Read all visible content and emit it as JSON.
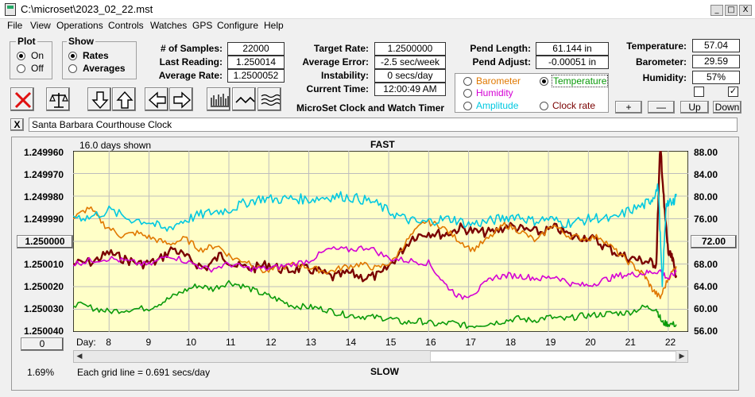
{
  "window": {
    "title": "C:\\microset\\2023_02_22.mst",
    "min": "_",
    "max": "□",
    "close": "X"
  },
  "menu": [
    "File",
    "View",
    "Operations",
    "Controls",
    "Watches",
    "GPS",
    "Configure",
    "Help"
  ],
  "plot_group": {
    "title": "Plot",
    "options": [
      "On",
      "Off"
    ],
    "selected": "On"
  },
  "show_group": {
    "title": "Show",
    "options": [
      "Rates",
      "Averages"
    ],
    "selected": "Rates"
  },
  "stats": {
    "samples_label": "# of Samples:",
    "samples": "22000",
    "last_label": "Last Reading:",
    "last": "1.250014",
    "avg_rate_label": "Average Rate:",
    "avg_rate": "1.2500052",
    "target_label": "Target Rate:",
    "target": "1.2500000",
    "avg_err_label": "Average Error:",
    "avg_err": "-2.5 sec/week",
    "instab_label": "Instability:",
    "instab": "0 secs/day",
    "time_label": "Current Time:",
    "time": "12:00:49 AM",
    "pend_len_label": "Pend Length:",
    "pend_len": "61.144 in",
    "pend_adj_label": "Pend Adjust:",
    "pend_adj": "-0.00051 in",
    "temp_label": "Temperature:",
    "temp": "57.04",
    "baro_label": "Barometer:",
    "baro": "29.59",
    "hum_label": "Humidity:",
    "hum": "57%"
  },
  "app_label": "MicroSet Clock and Watch Timer",
  "sensor_select": {
    "options": [
      {
        "label": "Barometer",
        "color": "#e07800"
      },
      {
        "label": "Temperature",
        "color": "#0a9a0a"
      },
      {
        "label": "Humidity",
        "color": "#d400d4"
      },
      {
        "label": "Amplitude",
        "color": "#00c8e0"
      },
      {
        "label": "Clock rate",
        "color": "#7a0000"
      }
    ],
    "selected": "Temperature"
  },
  "scale_buttons": [
    "+",
    "—",
    "Up",
    "Down"
  ],
  "description": "Santa Barbara Courthouse Clock",
  "close_x": "X",
  "icons": [
    "reset-x-icon",
    "balance-scale-icon",
    "arrow-down-icon",
    "arrow-up-icon",
    "arrow-left-icon",
    "arrow-right-icon",
    "bars-icon",
    "wave-icon",
    "multi-wave-icon"
  ],
  "chart_data": {
    "type": "line",
    "top_label": "FAST",
    "bottom_label": "SLOW",
    "days_shown": "16.0 days shown",
    "grid_note": "Each grid line = 0.691 secs/day",
    "percent": "1.69%",
    "x_prefix": "Day:",
    "x_ticks": [
      "8",
      "9",
      "10",
      "11",
      "12",
      "13",
      "14",
      "15",
      "16",
      "17",
      "18",
      "19",
      "20",
      "21",
      "22"
    ],
    "xlim": [
      7.1,
      22.5
    ],
    "y_left_ticks": [
      "1.249960",
      "1.249970",
      "1.249980",
      "1.249990",
      "1.250000",
      "1.250010",
      "1.250020",
      "1.250030",
      "1.250040"
    ],
    "y_left_button": "1.250000",
    "y_left_bottom_button": "0",
    "ylim_left": [
      1.24996,
      1.25004
    ],
    "y_right_ticks": [
      "88.00",
      "84.00",
      "80.00",
      "76.00",
      "72.00",
      "68.00",
      "64.00",
      "60.00",
      "56.00"
    ],
    "y_right_button": "72.00",
    "ylim_right": [
      56,
      88
    ],
    "colors": {
      "plot_bg": "#ffffc8",
      "grid": "#bdbdbd"
    },
    "series": [
      {
        "name": "Clock rate",
        "color": "#7a0000",
        "axis": "left",
        "x": [
          7.1,
          7.6,
          8.0,
          8.4,
          8.8,
          9.2,
          9.6,
          10.0,
          10.4,
          10.8,
          11.2,
          11.6,
          12.0,
          12.4,
          12.8,
          13.2,
          13.6,
          14.0,
          14.4,
          14.8,
          15.2,
          15.6,
          16.0,
          16.4,
          16.8,
          17.2,
          17.6,
          18.0,
          18.4,
          18.8,
          19.2,
          19.6,
          20.0,
          20.4,
          20.8,
          21.2,
          21.5,
          21.7,
          21.8,
          21.9,
          22.0,
          22.1,
          22.2
        ],
        "y": [
          1.25001,
          1.250009,
          1.250005,
          1.250008,
          1.25001,
          1.250009,
          1.250003,
          1.250008,
          1.250012,
          1.250006,
          1.250011,
          1.250012,
          1.25001,
          1.250013,
          1.250012,
          1.250013,
          1.250016,
          1.250014,
          1.250016,
          1.250015,
          1.250007,
          1.249998,
          1.249996,
          1.249997,
          1.249994,
          1.249996,
          1.249996,
          1.249993,
          1.249995,
          1.249996,
          1.249994,
          1.249998,
          1.249998,
          1.250002,
          1.250006,
          1.250008,
          1.250009,
          1.25001,
          1.249956,
          1.249985,
          1.250005,
          1.250008,
          1.250015
        ]
      },
      {
        "name": "Temperature",
        "color": "#0a9a0a",
        "axis": "right",
        "x": [
          7.1,
          7.6,
          8.0,
          8.5,
          9.0,
          9.4,
          9.8,
          10.2,
          10.6,
          11.0,
          11.4,
          11.8,
          12.2,
          12.6,
          13.0,
          13.4,
          13.8,
          14.2,
          14.6,
          15.0,
          15.4,
          15.8,
          16.2,
          16.6,
          17.0,
          17.4,
          17.8,
          18.2,
          18.6,
          19.0,
          19.4,
          19.8,
          20.2,
          20.6,
          21.0,
          21.4,
          21.7,
          21.85,
          22.0,
          22.2
        ],
        "y": [
          61.0,
          60.2,
          59.6,
          60.0,
          60.2,
          61.5,
          63.0,
          64.2,
          63.6,
          64.8,
          64.0,
          62.8,
          61.8,
          60.6,
          60.4,
          60.0,
          59.2,
          58.8,
          58.6,
          58.4,
          57.6,
          57.9,
          57.3,
          57.6,
          57.0,
          57.4,
          57.8,
          58.4,
          58.0,
          58.6,
          58.2,
          58.8,
          59.0,
          59.3,
          59.4,
          60.4,
          60.1,
          57.6,
          57.4,
          57.3
        ]
      },
      {
        "name": "Barometer",
        "color": "#e07800",
        "axis": "right",
        "x": [
          7.1,
          7.5,
          7.9,
          8.3,
          8.7,
          9.1,
          9.5,
          9.9,
          10.3,
          10.7,
          11.1,
          11.5,
          11.9,
          12.3,
          12.7,
          13.1,
          13.5,
          13.9,
          14.3,
          14.7,
          15.1,
          15.5,
          15.9,
          16.3,
          16.7,
          17.1,
          17.5,
          17.9,
          18.3,
          18.7,
          19.1,
          19.5,
          19.9,
          20.3,
          20.7,
          21.1,
          21.4,
          21.6,
          21.8,
          22.0,
          22.2
        ],
        "y": [
          76.0,
          78.0,
          74.8,
          73.0,
          73.5,
          72.5,
          71.5,
          72.5,
          70.5,
          71.3,
          69.0,
          68.4,
          66.6,
          67.4,
          68.0,
          67.2,
          66.6,
          67.5,
          68.0,
          67.2,
          68.5,
          72.5,
          75.5,
          74.8,
          72.5,
          70.5,
          72.5,
          75.0,
          73.8,
          72.0,
          75.0,
          73.0,
          72.5,
          72.8,
          70.2,
          67.8,
          66.0,
          63.5,
          62.0,
          65.5,
          67.6
        ]
      },
      {
        "name": "Humidity",
        "color": "#d400d4",
        "axis": "right",
        "x": [
          7.1,
          7.5,
          8.0,
          8.5,
          9.0,
          9.5,
          10.0,
          10.5,
          11.0,
          11.5,
          12.0,
          12.5,
          13.0,
          13.5,
          14.0,
          14.5,
          15.0,
          15.5,
          16.0,
          16.4,
          16.8,
          17.2,
          17.6,
          18.0,
          18.4,
          18.8,
          19.2,
          19.6,
          20.0,
          20.4,
          20.8,
          21.2,
          21.5,
          21.8,
          22.0,
          22.2
        ],
        "y": [
          68.0,
          68.6,
          69.0,
          68.4,
          67.8,
          69.6,
          68.3,
          67.0,
          68.0,
          67.2,
          67.2,
          67.8,
          68.6,
          70.6,
          70.5,
          71.0,
          69.0,
          68.6,
          68.2,
          64.5,
          62.0,
          63.2,
          65.6,
          66.0,
          65.8,
          65.4,
          65.8,
          64.4,
          64.2,
          65.2,
          66.0,
          66.2,
          66.5,
          66.8,
          65.4,
          66.6
        ]
      },
      {
        "name": "Amplitude",
        "color": "#00c8e0",
        "axis": "right",
        "x": [
          7.1,
          7.5,
          8.0,
          8.5,
          9.0,
          9.4,
          9.8,
          10.2,
          10.6,
          11.0,
          11.4,
          11.8,
          12.2,
          12.6,
          13.0,
          13.4,
          13.8,
          14.2,
          14.6,
          15.0,
          15.4,
          15.8,
          16.2,
          16.6,
          17.0,
          17.4,
          17.8,
          18.2,
          18.6,
          19.0,
          19.4,
          19.8,
          20.2,
          20.6,
          21.0,
          21.4,
          21.6,
          21.75,
          21.85,
          21.95,
          22.1,
          22.2
        ],
        "y": [
          76.5,
          76.2,
          77.5,
          76.0,
          75.5,
          74.0,
          75.5,
          76.5,
          77.2,
          77.6,
          78.8,
          79.6,
          79.4,
          79.6,
          79.4,
          79.8,
          80.0,
          79.6,
          79.0,
          77.3,
          76.0,
          75.2,
          75.8,
          76.0,
          75.0,
          75.4,
          76.0,
          76.6,
          75.6,
          76.0,
          75.2,
          75.6,
          76.2,
          75.8,
          77.4,
          78.4,
          79.6,
          81.6,
          64.0,
          79.0,
          78.5,
          80.4
        ]
      }
    ]
  }
}
